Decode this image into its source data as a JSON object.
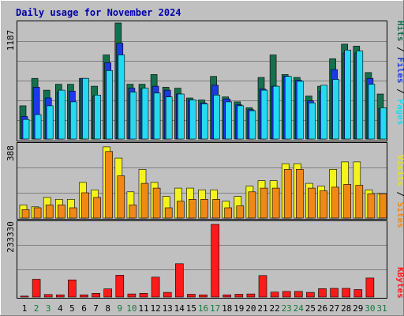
{
  "title": "Daily usage for November 2024",
  "colors": {
    "bg": "#c0c0c0",
    "plot_bg": "#c0c0c0",
    "title": "#0000aa",
    "hits": "#15704e",
    "files": "#1c39e6",
    "pages": "#24d9f0",
    "visits": "#f4f41c",
    "sites": "#f08818",
    "kbytes": "#ff1a1a",
    "weekend": "#157a3b",
    "weekday": "#000000"
  },
  "chart_data": [
    {
      "type": "bar",
      "panel": "requests",
      "ymax_label": "1187",
      "ylim": [
        0,
        1187
      ],
      "categories": [
        "1",
        "2",
        "3",
        "4",
        "5",
        "6",
        "7",
        "8",
        "9",
        "10",
        "11",
        "12",
        "13",
        "14",
        "15",
        "16",
        "17",
        "18",
        "19",
        "20",
        "21",
        "22",
        "23",
        "24",
        "25",
        "26",
        "27",
        "28",
        "29",
        "30",
        "31"
      ],
      "series": [
        {
          "name": "Hits",
          "values": [
            340,
            620,
            500,
            560,
            560,
            620,
            540,
            860,
            1187,
            560,
            560,
            660,
            530,
            520,
            420,
            400,
            640,
            430,
            380,
            320,
            630,
            860,
            660,
            630,
            440,
            540,
            820,
            970,
            950,
            680,
            460
          ]
        },
        {
          "name": "Files",
          "values": [
            230,
            530,
            420,
            480,
            490,
            620,
            440,
            780,
            980,
            520,
            510,
            540,
            500,
            460,
            400,
            370,
            550,
            410,
            350,
            300,
            510,
            540,
            640,
            600,
            390,
            490,
            710,
            880,
            880,
            620,
            310
          ]
        },
        {
          "name": "Pages",
          "values": [
            200,
            250,
            340,
            500,
            380,
            620,
            450,
            700,
            860,
            480,
            520,
            470,
            430,
            460,
            400,
            360,
            450,
            380,
            340,
            290,
            500,
            540,
            640,
            590,
            370,
            550,
            610,
            910,
            900,
            560,
            320
          ]
        }
      ],
      "legend": [
        "Pages",
        "Files",
        "Hits"
      ]
    },
    {
      "type": "bar",
      "panel": "visitors",
      "ymax_label": "388",
      "ylim": [
        0,
        388
      ],
      "categories": [
        "1",
        "2",
        "3",
        "4",
        "5",
        "6",
        "7",
        "8",
        "9",
        "10",
        "11",
        "12",
        "13",
        "14",
        "15",
        "16",
        "17",
        "18",
        "19",
        "20",
        "21",
        "22",
        "23",
        "24",
        "25",
        "26",
        "27",
        "28",
        "29",
        "30",
        "31"
      ],
      "series": [
        {
          "name": "Visits",
          "values": [
            70,
            60,
            110,
            100,
            100,
            190,
            150,
            380,
            320,
            140,
            260,
            190,
            115,
            160,
            160,
            150,
            150,
            90,
            115,
            170,
            200,
            200,
            290,
            290,
            185,
            170,
            260,
            300,
            300,
            150,
            130
          ]
        },
        {
          "name": "Sites",
          "values": [
            45,
            55,
            70,
            70,
            55,
            135,
            110,
            355,
            225,
            70,
            185,
            160,
            55,
            90,
            100,
            100,
            100,
            55,
            65,
            140,
            160,
            160,
            260,
            260,
            160,
            145,
            165,
            180,
            175,
            130,
            130
          ]
        }
      ],
      "legend": [
        "Sites",
        "Visits"
      ]
    },
    {
      "type": "bar",
      "panel": "kbytes",
      "ymax_label": "233330",
      "ylim": [
        0,
        233330
      ],
      "categories": [
        "1",
        "2",
        "3",
        "4",
        "5",
        "6",
        "7",
        "8",
        "9",
        "10",
        "11",
        "12",
        "13",
        "14",
        "15",
        "16",
        "17",
        "18",
        "19",
        "20",
        "21",
        "22",
        "23",
        "24",
        "25",
        "26",
        "27",
        "28",
        "29",
        "30",
        "31"
      ],
      "series": [
        {
          "name": "KBytes",
          "values": [
            3000,
            57000,
            8000,
            7000,
            55000,
            7000,
            12000,
            26000,
            70000,
            10000,
            12000,
            64000,
            15000,
            107000,
            9000,
            7000,
            233330,
            7000,
            9000,
            10000,
            69000,
            16000,
            18000,
            18000,
            15000,
            27000,
            28000,
            28000,
            24000,
            61000,
            0
          ]
        }
      ],
      "legend": [
        "KBytes"
      ]
    }
  ],
  "days": [
    {
      "label": "1",
      "weekend": false
    },
    {
      "label": "2",
      "weekend": true
    },
    {
      "label": "3",
      "weekend": true
    },
    {
      "label": "4",
      "weekend": false
    },
    {
      "label": "5",
      "weekend": false
    },
    {
      "label": "6",
      "weekend": false
    },
    {
      "label": "7",
      "weekend": false
    },
    {
      "label": "8",
      "weekend": false
    },
    {
      "label": "9",
      "weekend": true
    },
    {
      "label": "10",
      "weekend": true
    },
    {
      "label": "11",
      "weekend": false
    },
    {
      "label": "12",
      "weekend": false
    },
    {
      "label": "13",
      "weekend": false
    },
    {
      "label": "14",
      "weekend": false
    },
    {
      "label": "15",
      "weekend": false
    },
    {
      "label": "16",
      "weekend": true
    },
    {
      "label": "17",
      "weekend": true
    },
    {
      "label": "18",
      "weekend": false
    },
    {
      "label": "19",
      "weekend": false
    },
    {
      "label": "20",
      "weekend": false
    },
    {
      "label": "21",
      "weekend": false
    },
    {
      "label": "22",
      "weekend": false
    },
    {
      "label": "23",
      "weekend": true
    },
    {
      "label": "24",
      "weekend": true
    },
    {
      "label": "25",
      "weekend": false
    },
    {
      "label": "26",
      "weekend": false
    },
    {
      "label": "27",
      "weekend": false
    },
    {
      "label": "28",
      "weekend": false
    },
    {
      "label": "29",
      "weekend": false
    },
    {
      "label": "30",
      "weekend": true
    },
    {
      "label": "31",
      "weekend": true
    }
  ]
}
